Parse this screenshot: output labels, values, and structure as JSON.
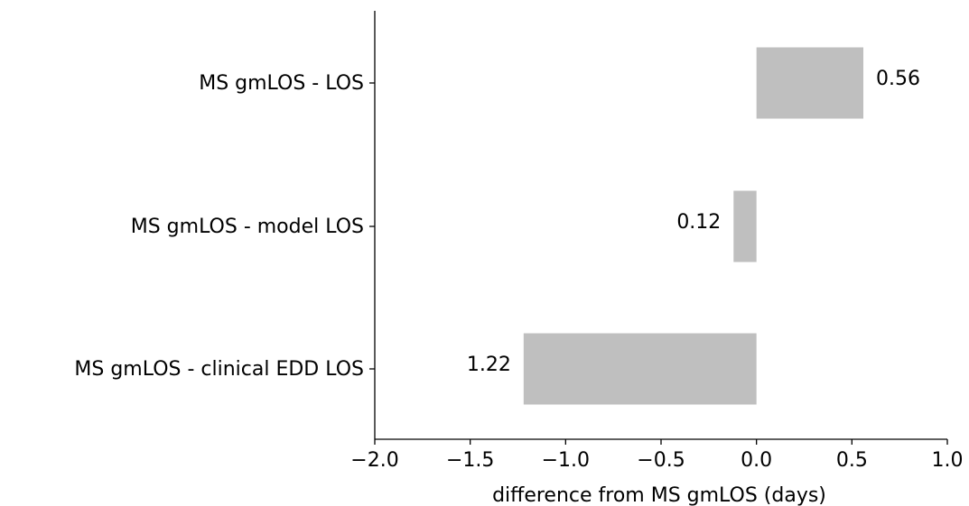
{
  "chart_data": {
    "type": "bar",
    "orientation": "horizontal",
    "categories": [
      "MS gmLOS - LOS",
      "MS gmLOS - model LOS",
      "MS gmLOS - clinical EDD LOS"
    ],
    "values": [
      0.56,
      -0.12,
      -1.22
    ],
    "data_labels": [
      "0.56",
      "0.12",
      "1.22"
    ],
    "xlabel": "difference from MS gmLOS (days)",
    "ylabel": "",
    "xlim": [
      -2.0,
      1.0
    ],
    "xticks": [
      -2.0,
      -1.5,
      -1.0,
      -0.5,
      0.0,
      0.5,
      1.0
    ],
    "xtick_labels": [
      "−2.0",
      "−1.5",
      "−1.0",
      "−0.5",
      "0.0",
      "0.5",
      "1.0"
    ],
    "bar_color": "#bfbfbf",
    "grid": false,
    "legend": "none"
  }
}
